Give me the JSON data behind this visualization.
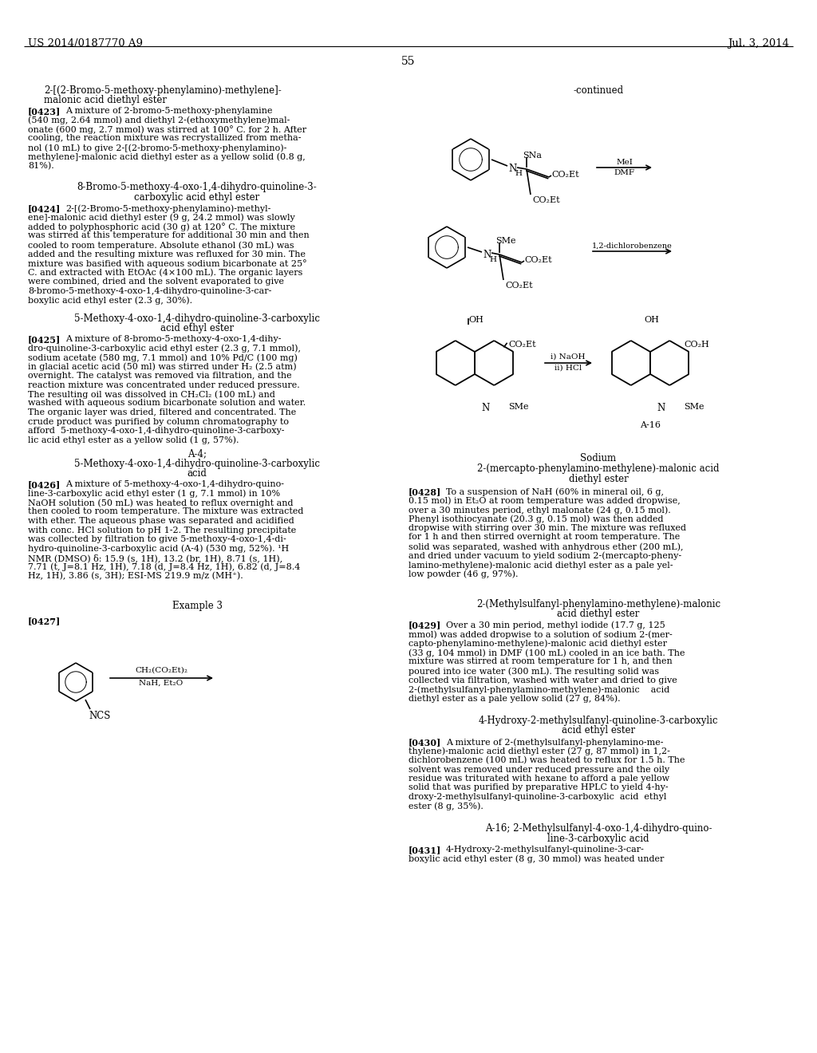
{
  "background_color": "#ffffff",
  "page_header_left": "US 2014/0187770 A9",
  "page_header_right": "Jul. 3, 2014",
  "page_number": "55",
  "figsize": [
    10.24,
    13.2
  ],
  "dpi": 100
}
